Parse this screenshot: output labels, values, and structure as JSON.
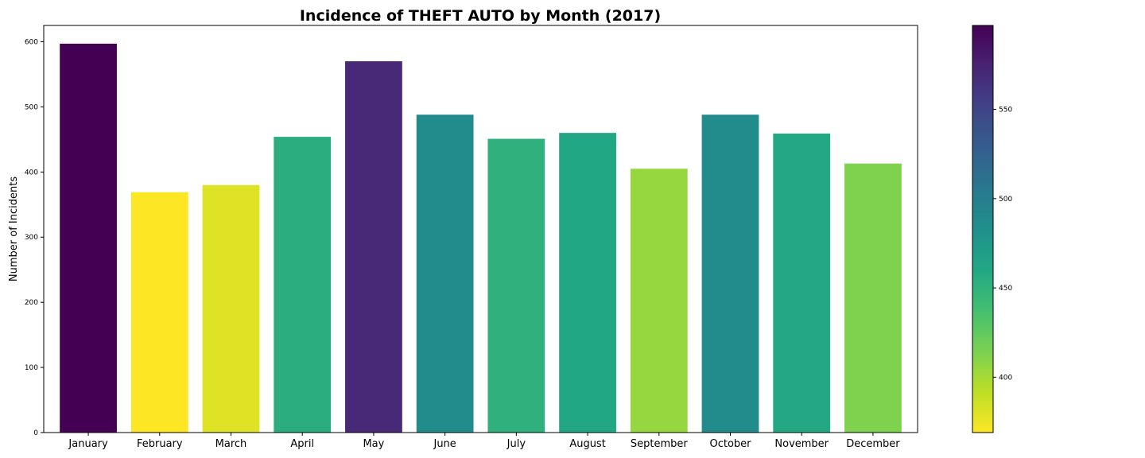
{
  "chart_data": {
    "type": "bar",
    "title": "Incidence of THEFT AUTO by Month (2017)",
    "xlabel": "",
    "ylabel": "Number of Incidents",
    "categories": [
      "January",
      "February",
      "March",
      "April",
      "May",
      "June",
      "July",
      "August",
      "September",
      "October",
      "November",
      "December"
    ],
    "values": [
      597,
      369,
      380,
      454,
      570,
      488,
      451,
      460,
      405,
      488,
      459,
      413
    ],
    "ylim": [
      0,
      625
    ],
    "yticks": [
      "0",
      "100",
      "200",
      "300",
      "400",
      "500",
      "600"
    ],
    "grid": false,
    "colormap": "viridis_r",
    "colorbar": {
      "range": [
        369,
        597
      ],
      "ticks": [
        "400",
        "450",
        "500",
        "550"
      ]
    }
  }
}
